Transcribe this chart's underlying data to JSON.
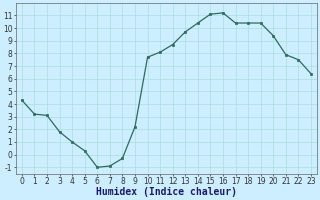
{
  "x": [
    0,
    1,
    2,
    3,
    4,
    5,
    6,
    7,
    8,
    9,
    10,
    11,
    12,
    13,
    14,
    15,
    16,
    17,
    18,
    19,
    20,
    21,
    22,
    23
  ],
  "y": [
    4.3,
    3.2,
    3.1,
    1.8,
    1.0,
    0.3,
    -1.0,
    -0.9,
    -0.3,
    2.2,
    7.7,
    8.1,
    8.7,
    9.7,
    10.4,
    11.1,
    11.2,
    10.4,
    10.4,
    10.4,
    9.4,
    7.9,
    7.5,
    6.4
  ],
  "line_color": "#2e6b5e",
  "marker": "s",
  "markersize": 2,
  "linewidth": 0.9,
  "xlabel": "Humidex (Indice chaleur)",
  "xlabel_fontsize": 7,
  "ylabel": "",
  "xlim": [
    -0.5,
    23.5
  ],
  "ylim": [
    -1.5,
    12.0
  ],
  "yticks": [
    -1,
    0,
    1,
    2,
    3,
    4,
    5,
    6,
    7,
    8,
    9,
    10,
    11
  ],
  "xticks": [
    0,
    1,
    2,
    3,
    4,
    5,
    6,
    7,
    8,
    9,
    10,
    11,
    12,
    13,
    14,
    15,
    16,
    17,
    18,
    19,
    20,
    21,
    22,
    23
  ],
  "bg_color": "#cceeff",
  "grid_color": "#aadddd",
  "tick_fontsize": 5.5,
  "spine_color": "#666666"
}
